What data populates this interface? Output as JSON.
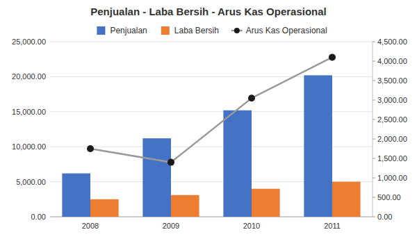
{
  "chart_data": {
    "type": "bar",
    "title": "Penjualan - Laba Bersih - Arus Kas Operasional",
    "categories": [
      "2008",
      "2009",
      "2010",
      "2011"
    ],
    "series": [
      {
        "name": "Penjualan",
        "color": "#4472C4",
        "values": [
          6200,
          11200,
          15200,
          20200
        ]
      },
      {
        "name": "Laba Bersih",
        "color": "#ED7D31",
        "values": [
          2500,
          3100,
          4000,
          5000
        ]
      },
      {
        "name": "Arus Kas Operasional",
        "type": "line",
        "axis": "y2",
        "color": "#999999",
        "colors": [
          "#1a1a1a",
          "#1a1a1a",
          "#1a1a1a",
          "#1a1a1a"
        ],
        "marker": "circle",
        "values": [
          1750,
          1400,
          3050,
          4100
        ]
      }
    ],
    "ylim": [
      0,
      25000
    ],
    "yticks": [
      {
        "value": 0,
        "label": "0.00"
      },
      {
        "value": 5000,
        "label": "5,000.00"
      },
      {
        "value": 10000,
        "label": "10,000.00"
      },
      {
        "value": 15000,
        "label": "15,000.00"
      },
      {
        "value": 20000,
        "label": "20,000.00"
      },
      {
        "value": 25000,
        "label": "25,000.00"
      }
    ],
    "y2lim": [
      0,
      4500
    ],
    "y2ticks": [
      {
        "value": 0,
        "label": "0.00"
      },
      {
        "value": 500,
        "label": "500.00"
      },
      {
        "value": 1000,
        "label": "1,000.00"
      },
      {
        "value": 1500,
        "label": "1,500.00"
      },
      {
        "value": 2000,
        "label": "2,000.00"
      },
      {
        "value": 2500,
        "label": "2,500.00"
      },
      {
        "value": 3000,
        "label": "3,000.00"
      },
      {
        "value": 3500,
        "label": "3,500.00"
      },
      {
        "value": 4000,
        "label": "4,000.00"
      },
      {
        "value": 4500,
        "label": "4,500.00"
      }
    ],
    "grid": true,
    "legend": "top"
  }
}
